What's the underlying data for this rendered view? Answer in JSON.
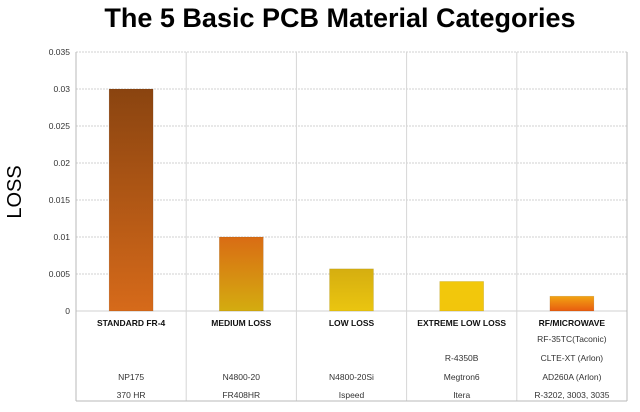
{
  "chart_data": {
    "type": "bar",
    "title": "The 5 Basic PCB Material Categories",
    "xlabel": "",
    "ylabel": "LOSS",
    "ylim": [
      0,
      0.035
    ],
    "yticks": [
      "0",
      "0.005",
      "0.01",
      "0.015",
      "0.02",
      "0.025",
      "0.03",
      "0.035"
    ],
    "grid": true,
    "categories": [
      "STANDARD FR-4",
      "MEDIUM LOSS",
      "LOW LOSS",
      "EXTREME LOW LOSS",
      "RF/MICROWAVE"
    ],
    "values": [
      0.03,
      0.01,
      0.0057,
      0.004,
      0.002
    ],
    "bar_colors": [
      [
        "#8a4410",
        "#d66a1a"
      ],
      [
        "#d96c14",
        "#d4ac10"
      ],
      [
        "#d5ae10",
        "#eac510"
      ],
      [
        "#f2c80c",
        "#f2c60c"
      ],
      [
        "#f2a412",
        "#e85c10"
      ]
    ],
    "materials": [
      [
        "NP175",
        "370 HR"
      ],
      [
        "N4800-20",
        "FR408HR"
      ],
      [
        "N4800-20Si",
        "Ispeed"
      ],
      [
        "R-4350B",
        "Megtron6",
        "Itera"
      ],
      [
        "RF-35TC(Taconic)",
        "CLTE-XT (Arlon)",
        "AD260A (Arlon)",
        "R-3202, 3003, 3035"
      ]
    ]
  }
}
